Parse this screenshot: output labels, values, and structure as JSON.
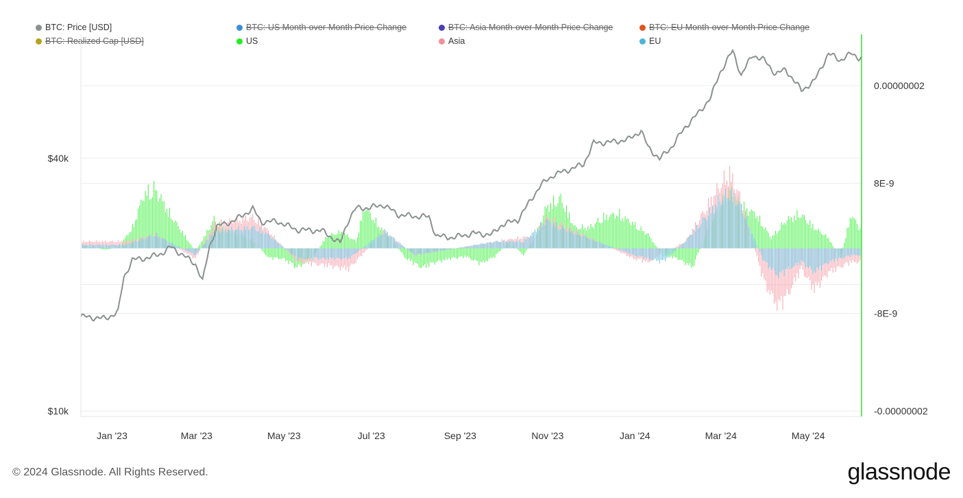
{
  "legend": [
    {
      "label": "BTC: Price [USD]",
      "color": "#8a8f8f",
      "enabled": true
    },
    {
      "label": "BTC: US Month-over-Month Price Change",
      "color": "#3d8ed8",
      "enabled": false
    },
    {
      "label": "BTC: Asia Month-over-Month Price Change",
      "color": "#4a3fb5",
      "enabled": false
    },
    {
      "label": "BTC: EU Month-over-Month Price Change",
      "color": "#e0541f",
      "enabled": false
    },
    {
      "label": "BTC: Realized Cap [USD]",
      "color": "#b5a219",
      "enabled": false
    },
    {
      "label": "US",
      "color": "#22ee22",
      "enabled": true
    },
    {
      "label": "Asia",
      "color": "#f4909c",
      "enabled": true
    },
    {
      "label": "EU",
      "color": "#4cb4d8",
      "enabled": true
    }
  ],
  "footer": {
    "copyright": "© 2024 Glassnode. All Rights Reserved.",
    "brand": "glassnode"
  },
  "chart_data": {
    "type": "line+bar",
    "x_ticks": [
      "Jan '23",
      "Mar '23",
      "May '23",
      "Jul '23",
      "Sep '23",
      "Nov '23",
      "Jan '24",
      "Mar '24",
      "May '24"
    ],
    "left_axis": {
      "ticks": [
        "$10k",
        "$40k"
      ],
      "values": [
        10000,
        40000
      ],
      "scale": "log"
    },
    "right_axis": {
      "ticks": [
        "0.00000002",
        "8E-9",
        "-8E-9",
        "-0.00000002"
      ],
      "values": [
        2e-08,
        8e-09,
        -8e-09,
        -2e-08
      ]
    },
    "colors": {
      "price": "#8a8f8f",
      "us": "#22ee22",
      "asia": "#f4909c",
      "eu": "#4cb4d8",
      "right_axis_line": "#33dd33",
      "grid": "#ececec"
    },
    "series": [
      {
        "name": "BTC: Price [USD]",
        "axis": "left",
        "type": "line",
        "x": [
          "2022-12-15",
          "2023-01-01",
          "2023-01-10",
          "2023-01-14",
          "2023-01-20",
          "2023-02-01",
          "2023-02-10",
          "2023-02-16",
          "2023-02-25",
          "2023-03-05",
          "2023-03-10",
          "2023-03-15",
          "2023-03-20",
          "2023-04-01",
          "2023-04-14",
          "2023-04-20",
          "2023-05-01",
          "2023-05-15",
          "2023-06-01",
          "2023-06-14",
          "2023-06-20",
          "2023-06-25",
          "2023-07-05",
          "2023-07-14",
          "2023-07-25",
          "2023-08-05",
          "2023-08-15",
          "2023-08-20",
          "2023-09-01",
          "2023-09-15",
          "2023-09-28",
          "2023-10-05",
          "2023-10-16",
          "2023-10-23",
          "2023-11-01",
          "2023-11-10",
          "2023-11-20",
          "2023-12-01",
          "2023-12-08",
          "2023-12-20",
          "2024-01-01",
          "2024-01-10",
          "2024-01-15",
          "2024-01-23",
          "2024-02-01",
          "2024-02-10",
          "2024-02-20",
          "2024-02-28",
          "2024-03-05",
          "2024-03-14",
          "2024-03-20",
          "2024-03-28",
          "2024-04-05",
          "2024-04-13",
          "2024-04-20",
          "2024-05-01",
          "2024-05-10",
          "2024-05-20",
          "2024-05-28",
          "2024-06-05",
          "2024-06-10"
        ],
        "values": [
          16800,
          16600,
          17200,
          20800,
          22900,
          23200,
          23800,
          24600,
          23400,
          22400,
          20300,
          24800,
          27500,
          28400,
          30300,
          28200,
          28300,
          27000,
          26900,
          25100,
          28600,
          30400,
          30500,
          31000,
          29300,
          29100,
          29000,
          26100,
          25900,
          26500,
          26300,
          27800,
          28500,
          31000,
          34500,
          36500,
          37500,
          38700,
          43500,
          43700,
          44300,
          46500,
          42500,
          39800,
          42800,
          47500,
          51600,
          56000,
          63800,
          72000,
          63000,
          70500,
          68500,
          63500,
          65000,
          58000,
          61000,
          71000,
          68500,
          71000,
          69500
        ]
      },
      {
        "name": "US",
        "axis": "right",
        "type": "bar",
        "x": [
          "2022-12-15",
          "2023-01-01",
          "2023-01-10",
          "2023-01-20",
          "2023-01-28",
          "2023-02-05",
          "2023-02-15",
          "2023-02-25",
          "2023-03-05",
          "2023-03-12",
          "2023-03-18",
          "2023-03-25",
          "2023-04-05",
          "2023-04-15",
          "2023-04-25",
          "2023-05-05",
          "2023-05-15",
          "2023-05-25",
          "2023-06-05",
          "2023-06-15",
          "2023-06-25",
          "2023-07-01",
          "2023-07-10",
          "2023-07-20",
          "2023-07-30",
          "2023-08-10",
          "2023-08-20",
          "2023-08-30",
          "2023-09-10",
          "2023-09-20",
          "2023-09-30",
          "2023-10-10",
          "2023-10-20",
          "2023-10-28",
          "2023-11-05",
          "2023-11-15",
          "2023-11-25",
          "2023-12-05",
          "2023-12-15",
          "2023-12-25",
          "2024-01-05",
          "2024-01-15",
          "2024-01-25",
          "2024-02-05",
          "2024-02-15",
          "2024-02-25",
          "2024-03-05",
          "2024-03-12",
          "2024-03-20",
          "2024-03-30",
          "2024-04-10",
          "2024-04-20",
          "2024-04-30",
          "2024-05-10",
          "2024-05-20",
          "2024-05-28",
          "2024-06-05",
          "2024-06-10"
        ],
        "values": [
          5e-10,
          -2e-10,
          1e-10,
          3e-09,
          7.8e-09,
          8.6e-09,
          5e-09,
          2e-09,
          -5e-10,
          2e-09,
          4.2e-09,
          2.8e-09,
          2e-09,
          1e-09,
          -1.4e-09,
          -1.5e-09,
          -2.8e-09,
          -1.5e-09,
          1.8e-09,
          2.4e-09,
          1e-09,
          6e-09,
          3.5e-09,
          1.2e-09,
          -1.5e-09,
          -2.8e-09,
          -2e-09,
          -1.5e-09,
          -1.2e-09,
          -2.2e-09,
          -1.2e-09,
          1e-09,
          -1e-09,
          1.5e-09,
          6e-09,
          7.2e-09,
          3e-09,
          3e-09,
          4.5e-09,
          5e-09,
          3.5e-09,
          2e-09,
          -1e-09,
          -1.5e-09,
          -2.8e-09,
          2.5e-09,
          6e-09,
          8.5e-09,
          6e-09,
          5e-09,
          1.5e-09,
          4e-09,
          5e-09,
          3e-09,
          1.5e-09,
          -1.5e-09,
          5e-09,
          3e-09
        ]
      },
      {
        "name": "Asia",
        "axis": "right",
        "type": "bar",
        "x": [
          "2023-01-15",
          "2023-02-05",
          "2023-03-05",
          "2023-03-18",
          "2023-04-15",
          "2023-04-25",
          "2023-05-15",
          "2023-06-05",
          "2023-06-20",
          "2023-07-15",
          "2023-08-05",
          "2023-10-01",
          "2023-10-20",
          "2023-10-28",
          "2023-11-05",
          "2023-11-15",
          "2024-01-05",
          "2024-01-15",
          "2024-02-10",
          "2024-03-05",
          "2024-03-12",
          "2024-03-20",
          "2024-04-05",
          "2024-04-15",
          "2024-04-22",
          "2024-05-01",
          "2024-05-10",
          "2024-05-20",
          "2024-06-05"
        ],
        "values": [
          1e-09,
          2e-09,
          -1.5e-09,
          3.5e-09,
          4.5e-09,
          2.5e-09,
          -2e-09,
          -2.5e-09,
          -3e-09,
          2.5e-09,
          -1e-09,
          1e-09,
          1.6e-09,
          1.8e-09,
          4.5e-09,
          3.5e-09,
          -1.5e-09,
          -2e-09,
          1e-09,
          9e-09,
          1.08e-08,
          7e-09,
          -5e-09,
          -8.5e-09,
          -6.5e-09,
          -3e-09,
          -6e-09,
          -3.5e-09,
          -2e-09
        ]
      },
      {
        "name": "EU",
        "axis": "right",
        "type": "bar",
        "x": [
          "2023-01-15",
          "2023-02-05",
          "2023-03-05",
          "2023-03-18",
          "2023-04-15",
          "2023-04-25",
          "2023-05-15",
          "2023-06-05",
          "2023-06-20",
          "2023-07-15",
          "2023-08-05",
          "2023-10-01",
          "2023-10-20",
          "2023-11-05",
          "2023-11-15",
          "2024-01-05",
          "2024-01-25",
          "2024-02-10",
          "2024-03-05",
          "2024-03-12",
          "2024-03-20",
          "2024-04-05",
          "2024-04-15",
          "2024-04-22",
          "2024-05-01",
          "2024-05-10",
          "2024-05-20",
          "2024-06-05"
        ],
        "values": [
          5e-10,
          2e-09,
          -1e-09,
          2.5e-09,
          3e-09,
          2e-09,
          -1.5e-09,
          -1.5e-09,
          -1.5e-09,
          2.5e-09,
          -1e-09,
          1e-09,
          1e-09,
          4e-09,
          3e-09,
          -1e-09,
          -2e-09,
          1e-09,
          7e-09,
          8e-09,
          6e-09,
          -2e-09,
          -4e-09,
          -3e-09,
          -2e-09,
          -3.5e-09,
          -2e-09,
          -1e-09
        ]
      }
    ]
  }
}
